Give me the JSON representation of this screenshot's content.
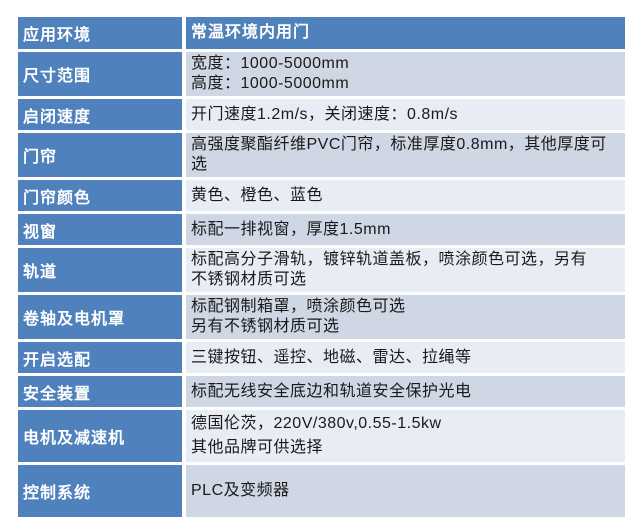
{
  "table": {
    "colors": {
      "header_blue": "#4F81BD",
      "band_dark": "#CFD6E4",
      "band_light": "#E8ECF4",
      "label_text": "#FFFFFF",
      "value_text": "#1A1A1A"
    },
    "rows": [
      {
        "label": "应用环境",
        "value": "常温环境内用门"
      },
      {
        "label": "尺寸范围",
        "value": [
          "宽度：1000-5000mm",
          "高度：1000-5000mm"
        ]
      },
      {
        "label": "启闭速度",
        "value": "开门速度1.2m/s，关闭速度：0.8m/s"
      },
      {
        "label": "门帘",
        "value": [
          "高强度聚酯纤维PVC门帘，标准厚度0.8mm，其他厚度可",
          "选"
        ]
      },
      {
        "label": "门帘颜色",
        "value": "黄色、橙色、蓝色"
      },
      {
        "label": "视窗",
        "value": "标配一排视窗，厚度1.5mm"
      },
      {
        "label": "轨道",
        "value": [
          "标配高分子滑轨，镀锌轨道盖板，喷涂颜色可选，另有",
          "不锈钢材质可选"
        ]
      },
      {
        "label": "卷轴及电机罩",
        "value": [
          "标配钢制箱罩，喷涂颜色可选",
          "另有不锈钢材质可选"
        ]
      },
      {
        "label": "开启选配",
        "value": "三键按钮、遥控、地磁、雷达、拉绳等"
      },
      {
        "label": "安全装置",
        "value": "标配无线安全底边和轨道安全保护光电"
      },
      {
        "label": "电机及减速机",
        "value": [
          "德国伦茨，220V/380v,0.55-1.5kw",
          "其他品牌可供选择"
        ]
      },
      {
        "label": "控制系统",
        "value": "PLC及变频器"
      }
    ]
  }
}
